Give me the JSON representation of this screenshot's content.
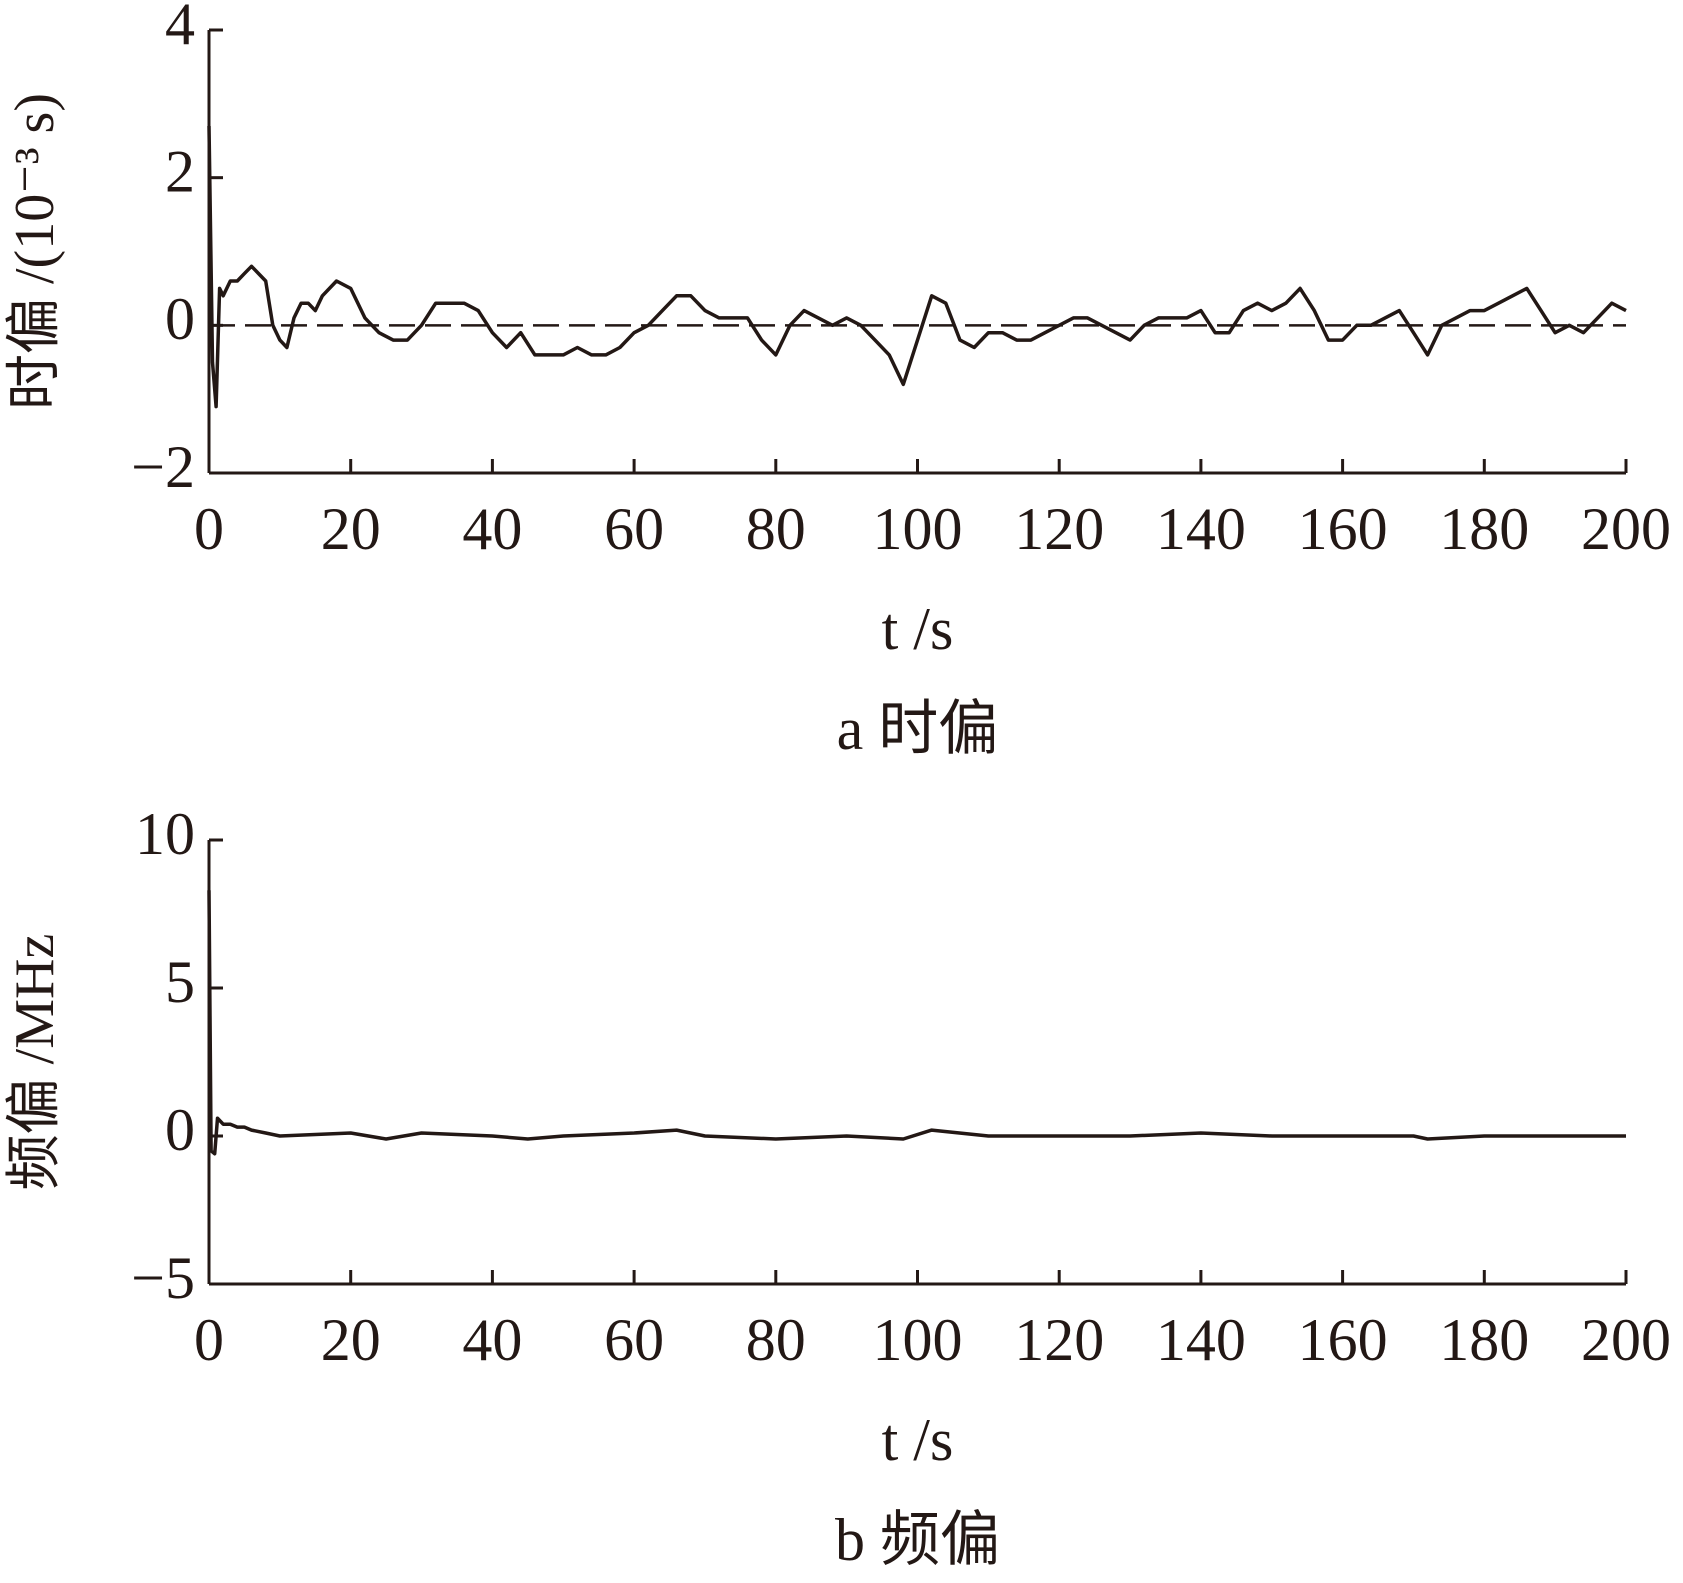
{
  "chart_data": [
    {
      "type": "line",
      "ylabel": "时偏 /(10⁻³ s)",
      "xlabel": "t /s",
      "caption": "a 时偏",
      "xlim": [
        0,
        200
      ],
      "xticks": [
        0,
        20,
        40,
        60,
        80,
        100,
        120,
        140,
        160,
        180,
        200
      ],
      "ylim": [
        -2,
        4
      ],
      "yticks": [
        {
          "value": -2,
          "label": "−2"
        },
        0,
        2,
        4
      ],
      "hline": 0,
      "color": "#231815",
      "x": [
        0,
        0.5,
        1,
        1.5,
        2,
        3,
        4,
        5,
        6,
        7,
        8,
        9,
        10,
        11,
        12,
        13,
        14,
        15,
        16,
        18,
        20,
        22,
        24,
        26,
        28,
        30,
        32,
        34,
        36,
        38,
        40,
        42,
        44,
        46,
        48,
        50,
        52,
        54,
        56,
        58,
        60,
        62,
        64,
        66,
        68,
        70,
        72,
        74,
        76,
        78,
        80,
        82,
        84,
        86,
        88,
        90,
        92,
        94,
        96,
        98,
        100,
        102,
        104,
        106,
        108,
        110,
        112,
        114,
        116,
        118,
        120,
        122,
        124,
        126,
        128,
        130,
        132,
        134,
        136,
        138,
        140,
        142,
        144,
        146,
        148,
        150,
        152,
        154,
        156,
        158,
        160,
        162,
        164,
        166,
        168,
        170,
        172,
        174,
        176,
        178,
        180,
        182,
        184,
        186,
        188,
        190,
        192,
        194,
        196,
        198,
        200
      ],
      "values": [
        2.7,
        -0.5,
        -1.1,
        0.5,
        0.4,
        0.6,
        0.6,
        0.7,
        0.8,
        0.7,
        0.6,
        0,
        -0.2,
        -0.3,
        0.1,
        0.3,
        0.3,
        0.2,
        0.4,
        0.6,
        0.5,
        0.1,
        -0.1,
        -0.2,
        -0.2,
        0,
        0.3,
        0.3,
        0.3,
        0.2,
        -0.1,
        -0.3,
        -0.1,
        -0.4,
        -0.4,
        -0.4,
        -0.3,
        -0.4,
        -0.4,
        -0.3,
        -0.1,
        0,
        0.2,
        0.4,
        0.4,
        0.2,
        0.1,
        0.1,
        0.1,
        -0.2,
        -0.4,
        0,
        0.2,
        0.1,
        0,
        0.1,
        0,
        -0.2,
        -0.4,
        -0.8,
        -0.2,
        0.4,
        0.3,
        -0.2,
        -0.3,
        -0.1,
        -0.1,
        -0.2,
        -0.2,
        -0.1,
        0,
        0.1,
        0.1,
        0,
        -0.1,
        -0.2,
        0,
        0.1,
        0.1,
        0.1,
        0.2,
        -0.1,
        -0.1,
        0.2,
        0.3,
        0.2,
        0.3,
        0.5,
        0.2,
        -0.2,
        -0.2,
        0,
        0,
        0.1,
        0.2,
        -0.1,
        -0.4,
        0,
        0.1,
        0.2,
        0.2,
        0.3,
        0.4,
        0.5,
        0.2,
        -0.1,
        0,
        -0.1,
        0.1,
        0.3,
        0.2
      ]
    },
    {
      "type": "line",
      "ylabel": "频偏 /MHz",
      "xlabel": "t /s",
      "caption": "b 频偏",
      "xlim": [
        0,
        200
      ],
      "xticks": [
        0,
        20,
        40,
        60,
        80,
        100,
        120,
        140,
        160,
        180,
        200
      ],
      "ylim": [
        -5,
        10
      ],
      "yticks": [
        {
          "value": -5,
          "label": "−5"
        },
        0,
        5,
        10
      ],
      "color": "#231815",
      "x": [
        0,
        0.3,
        0.8,
        1.2,
        2,
        3,
        4,
        5,
        6,
        8,
        10,
        20,
        25,
        30,
        40,
        45,
        50,
        60,
        66,
        70,
        80,
        90,
        98,
        102,
        110,
        120,
        130,
        140,
        150,
        160,
        170,
        172,
        180,
        190,
        200
      ],
      "values": [
        8.3,
        -0.5,
        -0.6,
        0.6,
        0.4,
        0.4,
        0.3,
        0.3,
        0.2,
        0.1,
        0,
        0.1,
        -0.1,
        0.1,
        0,
        -0.1,
        0,
        0.1,
        0.2,
        0,
        -0.1,
        0,
        -0.1,
        0.2,
        0,
        0,
        0,
        0.1,
        0,
        0,
        0,
        -0.1,
        0,
        0,
        0
      ]
    }
  ]
}
